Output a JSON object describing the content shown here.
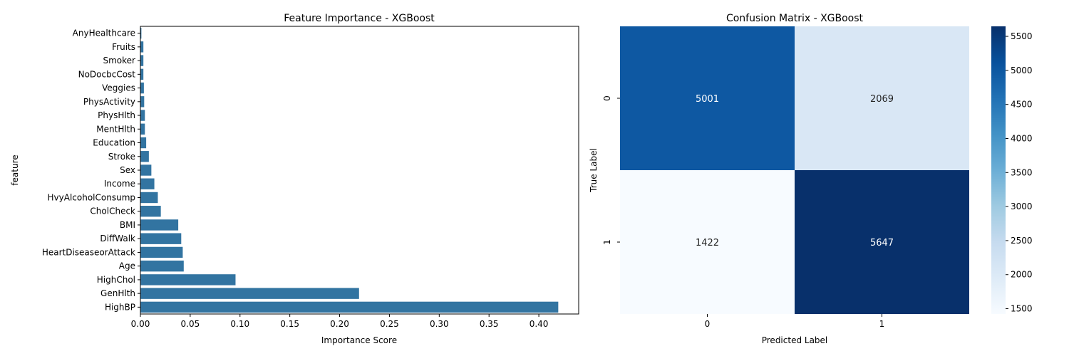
{
  "chart_data": [
    {
      "type": "bar",
      "orientation": "horizontal",
      "title": "Feature Importance - XGBoost",
      "xlabel": "Importance Score",
      "ylabel": "feature",
      "xlim": [
        0,
        0.44
      ],
      "xticks": [
        "0.00",
        "0.05",
        "0.10",
        "0.15",
        "0.20",
        "0.25",
        "0.30",
        "0.35",
        "0.40"
      ],
      "bar_color": "#3274a1",
      "categories": [
        "AnyHealthcare",
        "Fruits",
        "Smoker",
        "NoDocbcCost",
        "Veggies",
        "PhysActivity",
        "PhysHlth",
        "MentHlth",
        "Education",
        "Stroke",
        "Sex",
        "Income",
        "HvyAlcoholConsump",
        "CholCheck",
        "BMI",
        "DiffWalk",
        "HeartDiseaseorAttack",
        "Age",
        "HighChol",
        "GenHlth",
        "HighBP"
      ],
      "values": [
        0.001,
        0.003,
        0.003,
        0.003,
        0.0035,
        0.0038,
        0.0045,
        0.0045,
        0.0058,
        0.0085,
        0.011,
        0.014,
        0.0175,
        0.0205,
        0.038,
        0.041,
        0.0425,
        0.0435,
        0.0955,
        0.2195,
        0.4195
      ]
    },
    {
      "type": "heatmap",
      "title": "Confusion Matrix - XGBoost",
      "xlabel": "Predicted Label",
      "ylabel": "True Label",
      "x_categories": [
        "0",
        "1"
      ],
      "y_categories": [
        "0",
        "1"
      ],
      "values": [
        [
          5001,
          2069
        ],
        [
          1422,
          5647
        ]
      ],
      "colormap": "Blues",
      "vmin": 1422,
      "vmax": 5647,
      "colorbar_ticks": [
        "1500",
        "2000",
        "2500",
        "3000",
        "3500",
        "4000",
        "4500",
        "5000",
        "5500"
      ]
    }
  ]
}
